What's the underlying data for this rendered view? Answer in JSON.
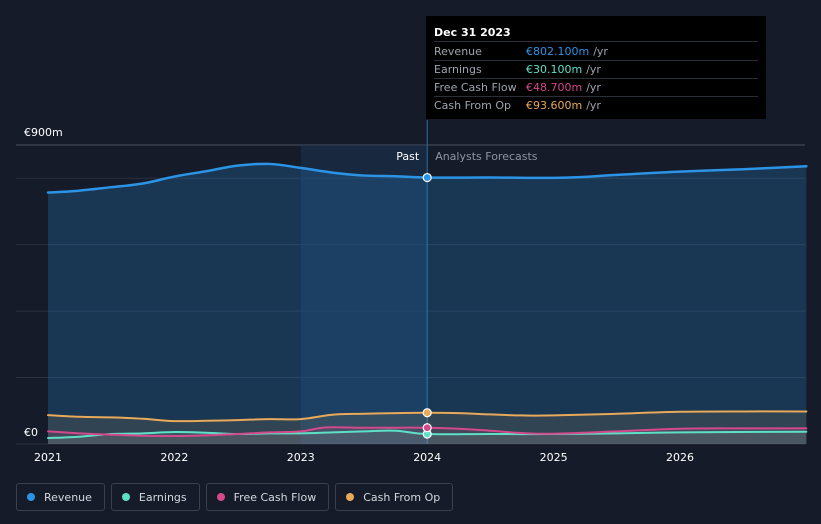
{
  "chart_data": {
    "type": "area",
    "title": "",
    "y_top_label": "€900m",
    "y_bottom_label": "€0",
    "ylim": [
      0,
      900
    ],
    "xlim": [
      2021.0,
      2027.0
    ],
    "x_ticks": [
      {
        "label": "2021",
        "value": 2021
      },
      {
        "label": "2022",
        "value": 2022
      },
      {
        "label": "2023",
        "value": 2023
      },
      {
        "label": "2024",
        "value": 2024
      },
      {
        "label": "2025",
        "value": 2025
      },
      {
        "label": "2026",
        "value": 2026
      }
    ],
    "y_grid": [
      0,
      200,
      400,
      600,
      800,
      900
    ],
    "past_label": "Past",
    "forecast_label": "Analysts Forecasts",
    "divider_x": 2024.0,
    "shade_start_x": 2023.0,
    "series": [
      {
        "name": "Revenue",
        "color": "#2b94e6",
        "points": [
          [
            2021.0,
            757
          ],
          [
            2021.2,
            761
          ],
          [
            2021.5,
            773
          ],
          [
            2021.75,
            784
          ],
          [
            2022.0,
            805
          ],
          [
            2022.25,
            821
          ],
          [
            2022.5,
            838
          ],
          [
            2022.75,
            843
          ],
          [
            2023.0,
            831
          ],
          [
            2023.25,
            817
          ],
          [
            2023.5,
            808
          ],
          [
            2023.75,
            806
          ],
          [
            2024.0,
            802
          ],
          [
            2024.5,
            802
          ],
          [
            2025.0,
            801
          ],
          [
            2025.25,
            804
          ],
          [
            2025.5,
            810
          ],
          [
            2026.0,
            820
          ],
          [
            2026.5,
            827
          ],
          [
            2027.0,
            836
          ]
        ]
      },
      {
        "name": "Earnings",
        "color": "#5ee0c6",
        "points": [
          [
            2021.0,
            18
          ],
          [
            2021.25,
            22
          ],
          [
            2021.5,
            30
          ],
          [
            2021.75,
            32
          ],
          [
            2022.0,
            36
          ],
          [
            2022.25,
            34
          ],
          [
            2022.5,
            30
          ],
          [
            2022.75,
            32
          ],
          [
            2023.0,
            32
          ],
          [
            2023.25,
            35
          ],
          [
            2023.5,
            38
          ],
          [
            2023.75,
            40
          ],
          [
            2024.0,
            30
          ],
          [
            2024.5,
            30
          ],
          [
            2025.0,
            30
          ],
          [
            2025.5,
            32
          ],
          [
            2026.0,
            35
          ],
          [
            2027.0,
            37
          ]
        ]
      },
      {
        "name": "Free Cash Flow",
        "color": "#d3498c",
        "points": [
          [
            2021.0,
            38
          ],
          [
            2021.25,
            32
          ],
          [
            2021.5,
            28
          ],
          [
            2021.75,
            25
          ],
          [
            2022.0,
            24
          ],
          [
            2022.25,
            26
          ],
          [
            2022.5,
            30
          ],
          [
            2022.75,
            35
          ],
          [
            2023.0,
            38
          ],
          [
            2023.2,
            50
          ],
          [
            2023.5,
            49
          ],
          [
            2023.75,
            49
          ],
          [
            2024.0,
            49
          ],
          [
            2024.25,
            46
          ],
          [
            2024.5,
            40
          ],
          [
            2024.75,
            33
          ],
          [
            2025.0,
            31
          ],
          [
            2025.5,
            38
          ],
          [
            2026.0,
            46
          ],
          [
            2026.5,
            47
          ],
          [
            2027.0,
            47
          ]
        ]
      },
      {
        "name": "Cash From Op",
        "color": "#e8a95a",
        "points": [
          [
            2021.0,
            87
          ],
          [
            2021.25,
            82
          ],
          [
            2021.5,
            80
          ],
          [
            2021.75,
            76
          ],
          [
            2022.0,
            69
          ],
          [
            2022.25,
            70
          ],
          [
            2022.5,
            72
          ],
          [
            2022.75,
            75
          ],
          [
            2023.0,
            75
          ],
          [
            2023.25,
            88
          ],
          [
            2023.5,
            91
          ],
          [
            2023.75,
            93
          ],
          [
            2024.0,
            94
          ],
          [
            2024.25,
            93
          ],
          [
            2024.5,
            89
          ],
          [
            2024.75,
            86
          ],
          [
            2025.0,
            86
          ],
          [
            2025.5,
            91
          ],
          [
            2026.0,
            97
          ],
          [
            2026.5,
            98
          ],
          [
            2027.0,
            98
          ]
        ]
      }
    ]
  },
  "tooltip": {
    "date": "Dec 31 2023",
    "unit": "/yr",
    "rows": [
      {
        "label": "Revenue",
        "value": "€802.100m",
        "color": "#2b94e6"
      },
      {
        "label": "Earnings",
        "value": "€30.100m",
        "color": "#5ee0c6"
      },
      {
        "label": "Free Cash Flow",
        "value": "€48.700m",
        "color": "#d3498c"
      },
      {
        "label": "Cash From Op",
        "value": "€93.600m",
        "color": "#e8a95a"
      }
    ]
  },
  "legend": [
    {
      "label": "Revenue",
      "color": "#2b94e6"
    },
    {
      "label": "Earnings",
      "color": "#5ee0c6"
    },
    {
      "label": "Free Cash Flow",
      "color": "#d3498c"
    },
    {
      "label": "Cash From Op",
      "color": "#e8a95a"
    }
  ]
}
